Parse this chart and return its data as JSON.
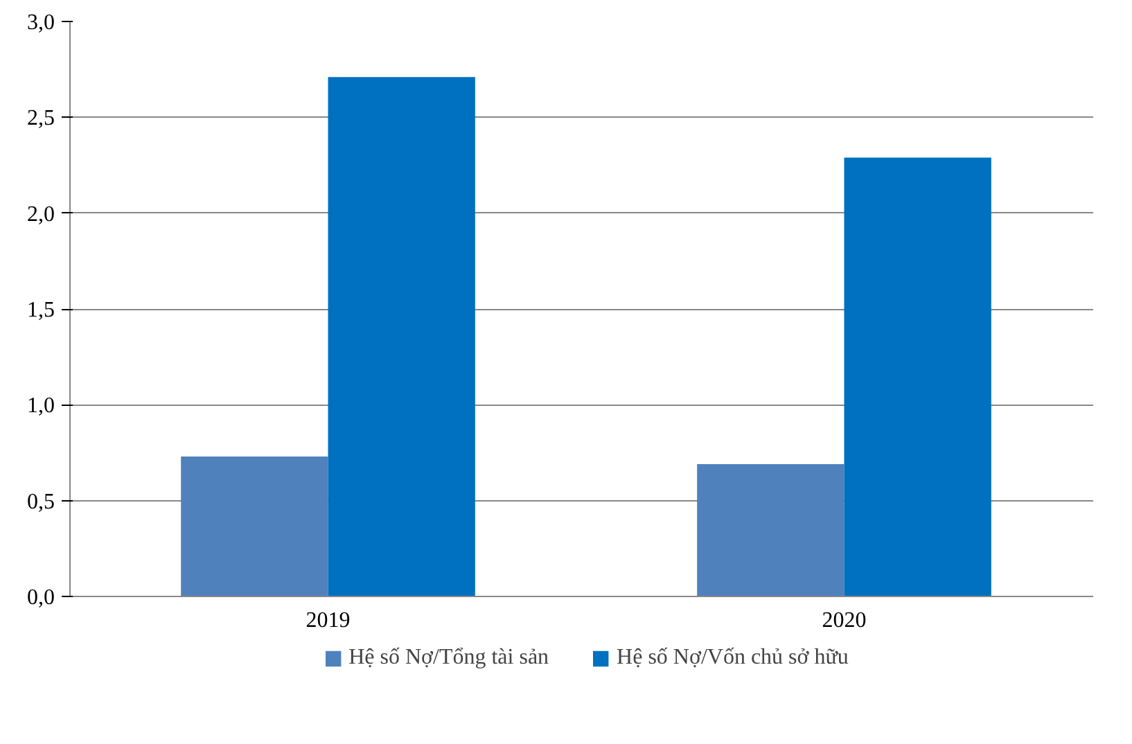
{
  "chart_data": {
    "type": "bar",
    "categories": [
      "2019",
      "2020"
    ],
    "series": [
      {
        "name": "Hệ số Nợ/Tổng tài sản",
        "color": "#4f81bd",
        "values": [
          0.73,
          0.69
        ]
      },
      {
        "name": "Hệ số Nợ/Vốn chủ sở hữu",
        "color": "#0070c0",
        "values": [
          2.71,
          2.29
        ]
      }
    ],
    "ylim": [
      0,
      3
    ],
    "yticks": [
      {
        "value": 0,
        "label": "0,0"
      },
      {
        "value": 0.5,
        "label": "0,5"
      },
      {
        "value": 1,
        "label": "1,0"
      },
      {
        "value": 1.5,
        "label": "1,5"
      },
      {
        "value": 2,
        "label": "2,0"
      },
      {
        "value": 2.5,
        "label": "2,5"
      },
      {
        "value": 3,
        "label": "3,0"
      }
    ],
    "grid": "y",
    "legend": "bottom"
  }
}
